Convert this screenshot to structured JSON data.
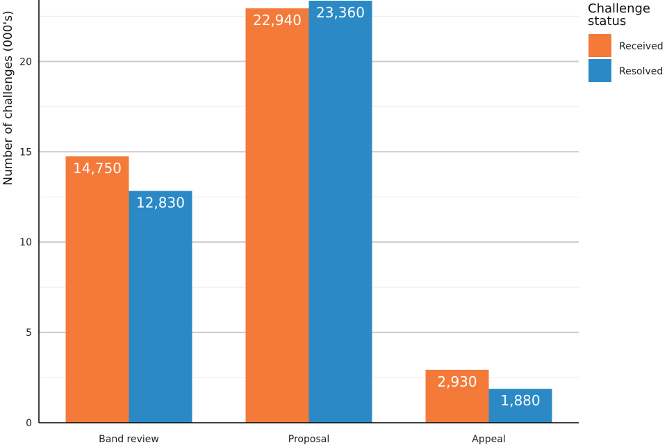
{
  "chart_data": {
    "type": "bar",
    "categories": [
      "Band review",
      "Proposal",
      "Appeal"
    ],
    "series": [
      {
        "name": "Received",
        "color": "#f47a3a",
        "values": [
          14.75,
          22.94,
          2.93
        ],
        "labels": [
          "14,750",
          "22,940",
          "2,930"
        ]
      },
      {
        "name": "Resolved",
        "color": "#2b8ac6",
        "values": [
          12.83,
          23.36,
          1.88
        ],
        "labels": [
          "12,830",
          "23,360",
          "1,880"
        ]
      }
    ],
    "title": "",
    "xlabel": "",
    "ylabel": "Number of challenges (000's)",
    "ylim": [
      0,
      23.4
    ],
    "yticks": [
      0,
      5,
      10,
      15,
      20
    ],
    "grid": true,
    "legend": {
      "title_lines": [
        "Challenge",
        "status"
      ],
      "placement": "right"
    }
  }
}
